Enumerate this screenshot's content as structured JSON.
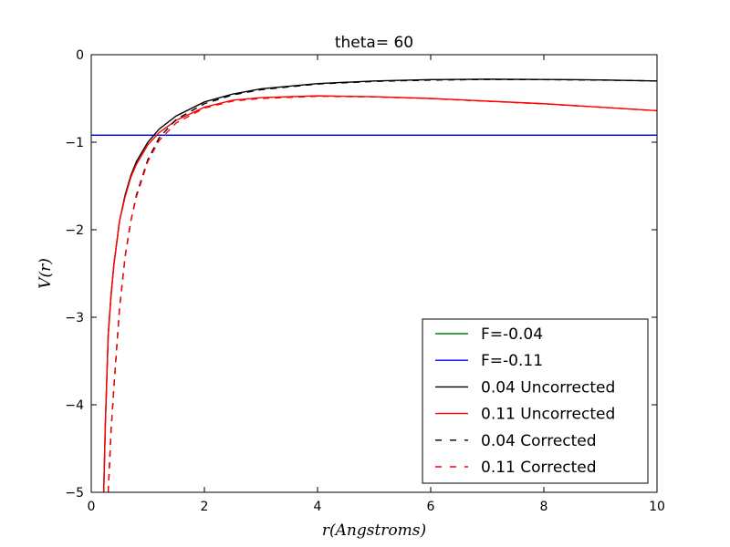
{
  "chart_data": {
    "type": "line",
    "title": "theta= 60",
    "xlabel": "r(Angstroms)",
    "ylabel": "V(r)",
    "xlim": [
      0,
      10
    ],
    "ylim": [
      -5,
      0
    ],
    "xticks": [
      0,
      2,
      4,
      6,
      8,
      10
    ],
    "yticks": [
      0,
      -1,
      -2,
      -3,
      -4,
      -5
    ],
    "xtick_labels": [
      "0",
      "2",
      "4",
      "6",
      "8",
      "10"
    ],
    "ytick_labels": [
      "0",
      "−1",
      "−2",
      "−3",
      "−4",
      "−5"
    ],
    "grid": false,
    "legend_position": "lower-right",
    "series": [
      {
        "name": "F=-0.04",
        "color": "#008000",
        "dash": "solid",
        "x": [
          0,
          10
        ],
        "y": [
          -0.92,
          -0.92
        ]
      },
      {
        "name": "F=-0.11",
        "color": "#0000ff",
        "dash": "solid",
        "x": [
          0,
          10
        ],
        "y": [
          -0.92,
          -0.92
        ]
      },
      {
        "name": "0.04 Uncorrected",
        "color": "#000000",
        "dash": "solid",
        "x": [
          0.22,
          0.25,
          0.3,
          0.35,
          0.4,
          0.5,
          0.6,
          0.7,
          0.8,
          1.0,
          1.2,
          1.5,
          2.0,
          2.5,
          3.0,
          4.0,
          5.0,
          6.0,
          7.0,
          8.0,
          9.0,
          10.0
        ],
        "y": [
          -5.0,
          -4.2,
          -3.2,
          -2.75,
          -2.4,
          -1.9,
          -1.6,
          -1.38,
          -1.22,
          -1.0,
          -0.85,
          -0.7,
          -0.54,
          -0.45,
          -0.39,
          -0.33,
          -0.3,
          -0.285,
          -0.28,
          -0.283,
          -0.288,
          -0.3
        ]
      },
      {
        "name": "0.11 Uncorrected",
        "color": "#ff0000",
        "dash": "solid",
        "x": [
          0.22,
          0.25,
          0.3,
          0.35,
          0.4,
          0.5,
          0.6,
          0.7,
          0.8,
          1.0,
          1.2,
          1.5,
          2.0,
          2.5,
          3.0,
          4.0,
          5.0,
          6.0,
          7.0,
          8.0,
          9.0,
          10.0
        ],
        "y": [
          -5.0,
          -4.2,
          -3.2,
          -2.75,
          -2.4,
          -1.9,
          -1.62,
          -1.4,
          -1.25,
          -1.03,
          -0.89,
          -0.75,
          -0.6,
          -0.52,
          -0.49,
          -0.47,
          -0.48,
          -0.5,
          -0.53,
          -0.56,
          -0.6,
          -0.64
        ]
      },
      {
        "name": "0.04 Corrected",
        "color": "#000000",
        "dash": "dashed",
        "x": [
          0.3,
          0.35,
          0.4,
          0.5,
          0.6,
          0.7,
          0.8,
          1.0,
          1.2,
          1.5,
          2.0,
          2.5,
          3.0,
          4.0,
          5.0,
          6.0,
          7.0,
          8.0,
          9.0,
          10.0
        ],
        "y": [
          -5.0,
          -4.3,
          -3.8,
          -2.9,
          -2.3,
          -1.9,
          -1.6,
          -1.2,
          -0.95,
          -0.74,
          -0.56,
          -0.46,
          -0.4,
          -0.335,
          -0.305,
          -0.29,
          -0.283,
          -0.285,
          -0.29,
          -0.3
        ]
      },
      {
        "name": "0.11 Corrected",
        "color": "#ff0000",
        "dash": "dashed",
        "x": [
          0.3,
          0.35,
          0.4,
          0.5,
          0.6,
          0.7,
          0.8,
          1.0,
          1.2,
          1.5,
          2.0,
          2.5,
          3.0,
          4.0,
          5.0,
          6.0,
          7.0,
          8.0,
          9.0,
          10.0
        ],
        "y": [
          -5.0,
          -4.3,
          -3.8,
          -2.9,
          -2.3,
          -1.9,
          -1.62,
          -1.22,
          -0.98,
          -0.78,
          -0.61,
          -0.53,
          -0.5,
          -0.475,
          -0.482,
          -0.502,
          -0.532,
          -0.562,
          -0.6,
          -0.64
        ]
      }
    ]
  }
}
